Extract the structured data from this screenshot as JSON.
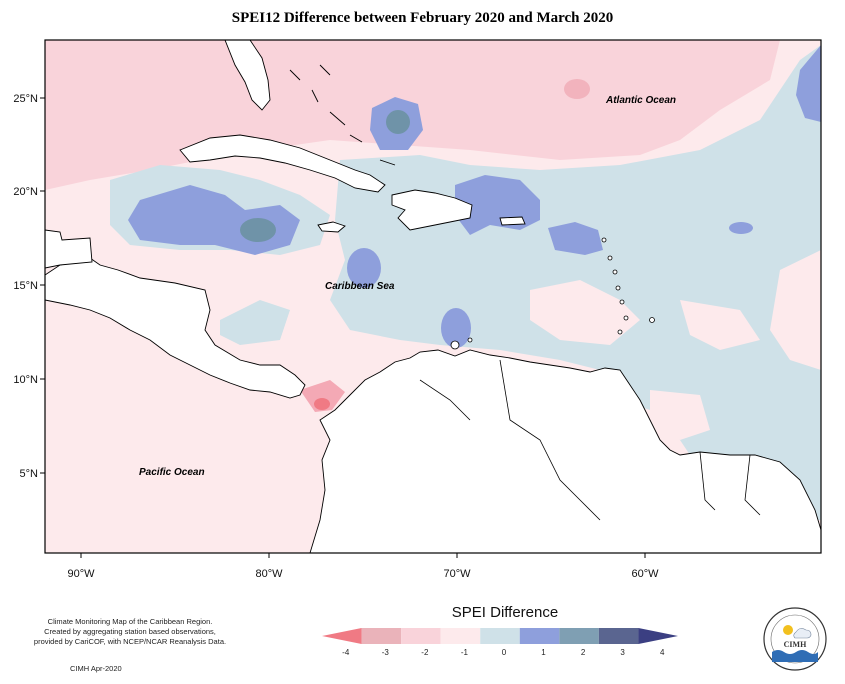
{
  "title": "SPEI12 Difference between February 2020 and March 2020",
  "map": {
    "labels": {
      "atlantic": "Atlantic Ocean",
      "caribbean": "Caribbean Sea",
      "pacific": "Pacific Ocean"
    },
    "lon_ticks": [
      "90°W",
      "80°W",
      "70°W",
      "60°W"
    ],
    "lat_ticks": [
      "25°N",
      "20°N",
      "15°N",
      "10°N",
      "5°N"
    ]
  },
  "credits": {
    "line1": "Climate Monitoring Map of the Caribbean Region.",
    "line2": "Created by aggregating station based observations,",
    "line3": "provided by CariCOF, with NCEP/NCAR Reanalysis Data.",
    "stamp": "CIMH Apr-2020"
  },
  "legend": {
    "title": "SPEI Difference",
    "ticks": [
      "-4",
      "-3",
      "-2",
      "-1",
      "0",
      "1",
      "2",
      "3",
      "4"
    ],
    "colors": [
      "#f07a84",
      "#eab3ba",
      "#f9d3da",
      "#fdeaec",
      "#cfe1e8",
      "#8e9fdc",
      "#7f9fb3",
      "#5a6590",
      "#3b3f82"
    ]
  },
  "logo": {
    "text": "CIMH"
  },
  "palette": {
    "strong_neg": "#f4a9b5",
    "mid_neg": "#f9d3da",
    "light_neg": "#fde8ea",
    "light_pos": "#cfe1e8",
    "mid_pos": "#8e9fdc",
    "strong_pos": "#6f93a8"
  }
}
